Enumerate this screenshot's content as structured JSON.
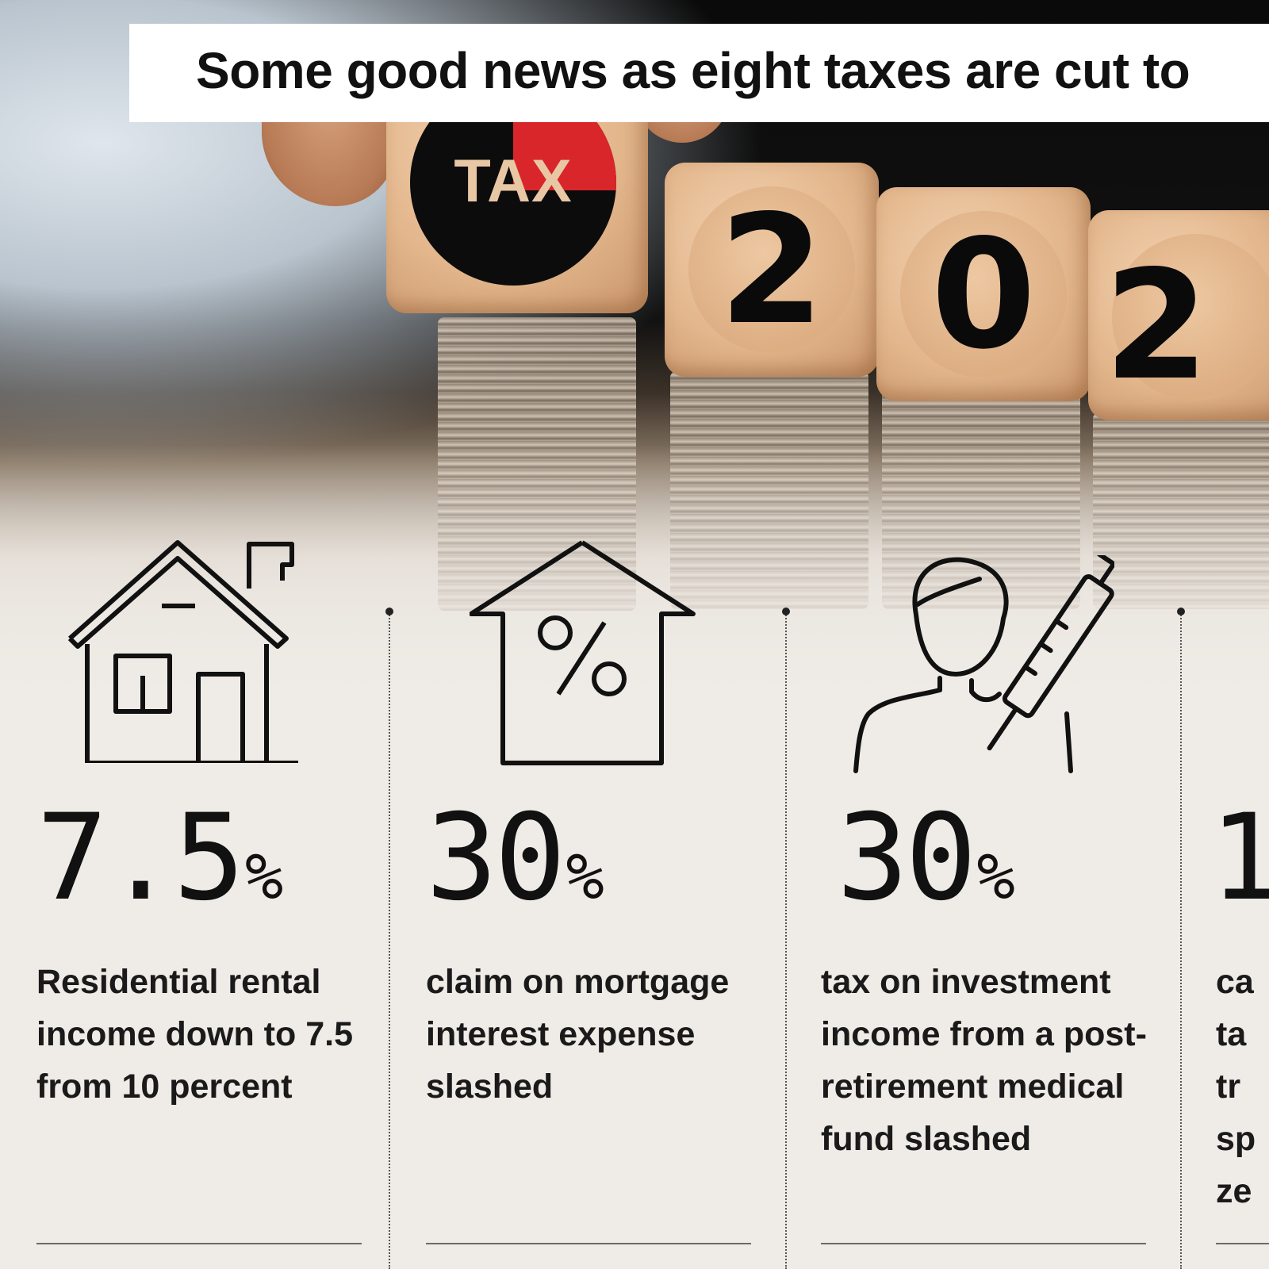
{
  "title": "Some good news as eight taxes are cut to",
  "photo": {
    "cube_tax_label": "TAX",
    "cube_digits": [
      "2",
      "0",
      "2"
    ],
    "accent_red": "#d9262a"
  },
  "items": [
    {
      "icon": "house-icon",
      "value": "7.5",
      "unit": "%",
      "description": "Residential rental income down to 7.5 from 10 percent"
    },
    {
      "icon": "house-percent-icon",
      "value": "30",
      "unit": "%",
      "description": "claim on mortgage interest expense slashed"
    },
    {
      "icon": "person-syringe-icon",
      "value": "30",
      "unit": "%",
      "description": "tax on investment income from a post-retirement medical fund slashed"
    },
    {
      "icon": "partial-icon",
      "value": "1",
      "unit": "",
      "description": "ca ta tr sp ze"
    }
  ]
}
